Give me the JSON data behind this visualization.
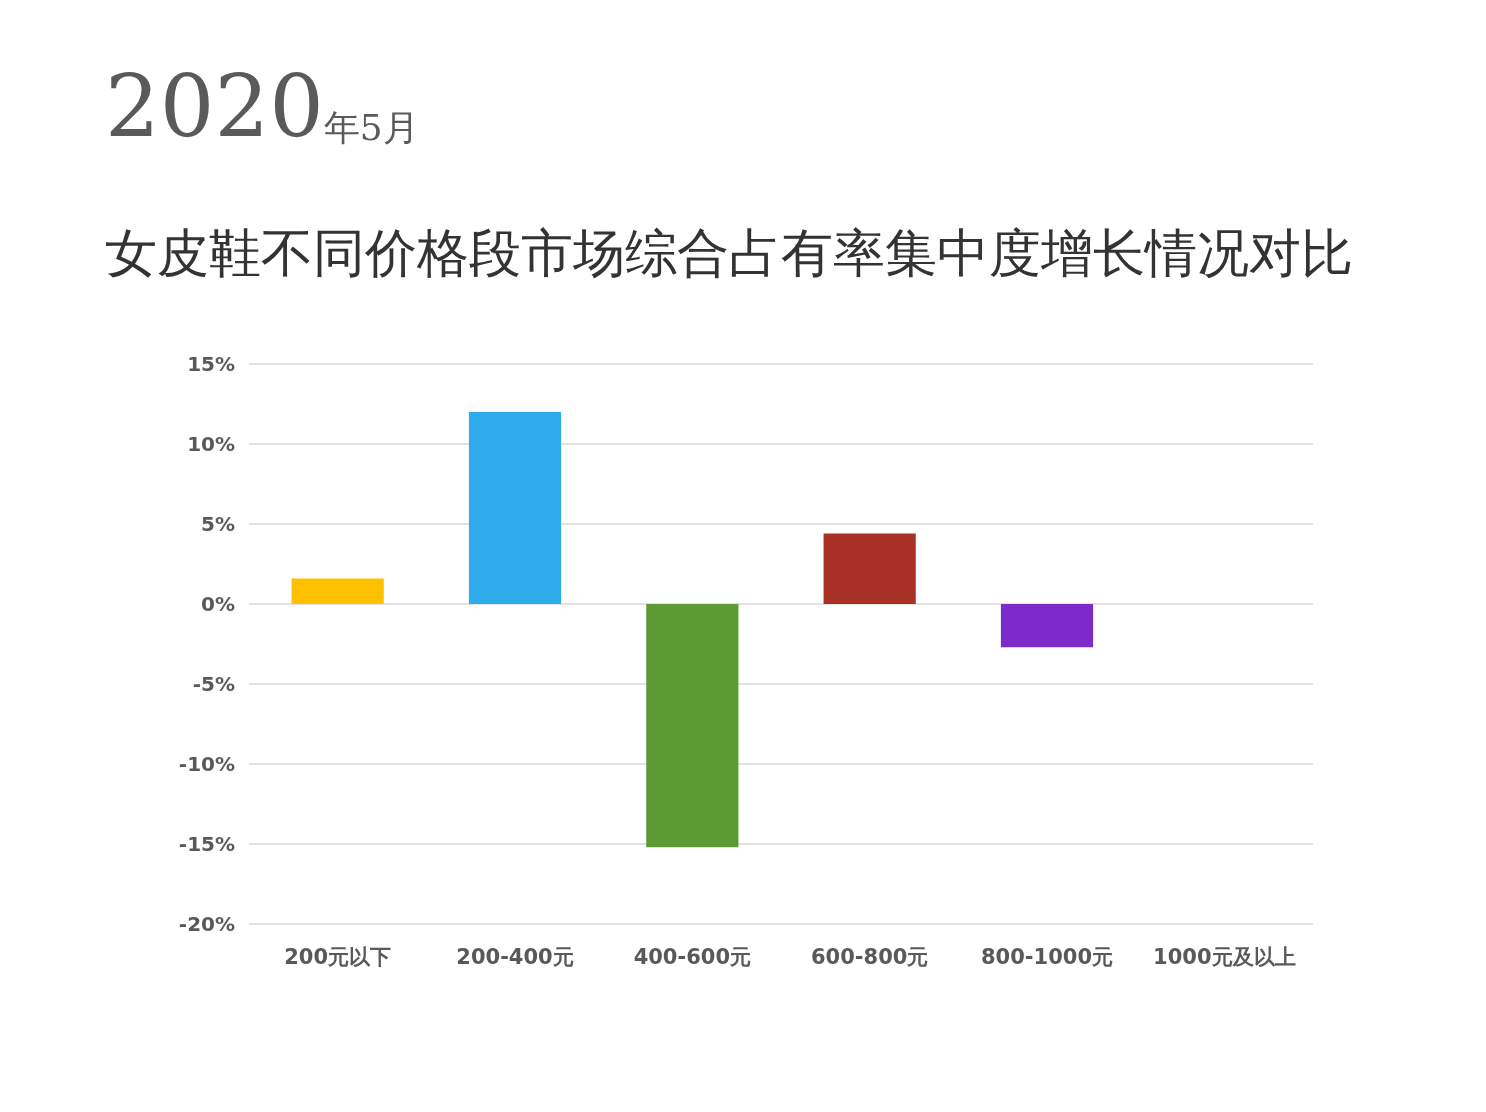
{
  "chart_data": {
    "type": "bar",
    "title": "2020年5月",
    "subtitle": "女皮鞋不同价格段市场综合占有率集中度增长情况对比",
    "categories": [
      "200元以下",
      "200-400元",
      "400-600元",
      "600-800元",
      "800-1000元",
      "1000元及以上"
    ],
    "values": [
      1.6,
      12.0,
      -15.2,
      4.4,
      -2.7,
      null
    ],
    "colors": [
      "#ffc000",
      "#2eabea",
      "#5e9a34",
      "#a93024",
      "#7d2acb",
      null
    ],
    "ylim": [
      -20,
      15
    ],
    "yticks": [
      {
        "value": -20,
        "label": "-20%"
      },
      {
        "value": -15,
        "label": "-15%"
      },
      {
        "value": -10,
        "label": "-10%"
      },
      {
        "value": -5,
        "label": "-5%"
      },
      {
        "value": 0,
        "label": "0%"
      },
      {
        "value": 5,
        "label": "5%"
      },
      {
        "value": 10,
        "label": "10%"
      },
      {
        "value": 15,
        "label": "15%"
      }
    ],
    "grid": "y"
  }
}
